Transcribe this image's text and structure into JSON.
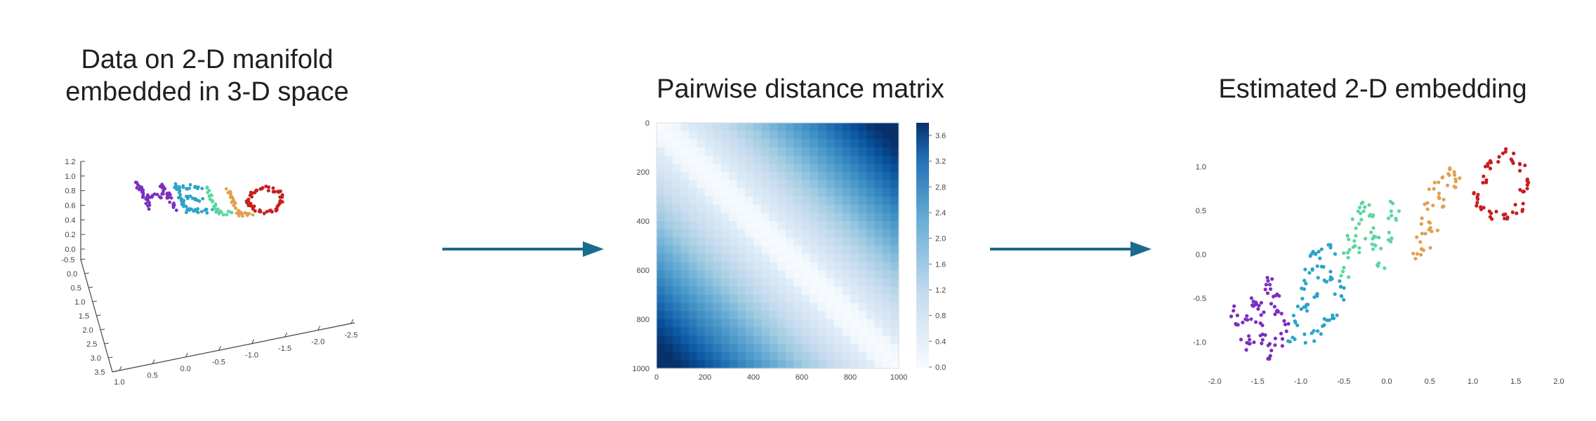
{
  "panels": {
    "left": {
      "title_line1": "Data on 2-D manifold",
      "title_line2": "embedded in 3-D space",
      "word": "HELLO",
      "z_ticks": [
        "1.2",
        "1.0",
        "0.8",
        "0.6",
        "0.4",
        "0.2",
        "0.0"
      ],
      "depth_ticks": [
        "-0.5",
        "0.0",
        "0.5",
        "1.0",
        "1.5",
        "2.0",
        "2.5",
        "3.0",
        "3.5"
      ],
      "x_ticks": [
        "1.0",
        "0.5",
        "0.0",
        "-0.5",
        "-1.0",
        "-1.5",
        "-2.0",
        "-2.5"
      ]
    },
    "middle": {
      "title": "Pairwise distance matrix",
      "y_ticks": [
        "0",
        "200",
        "400",
        "600",
        "800",
        "1000"
      ],
      "x_ticks": [
        "0",
        "200",
        "400",
        "600",
        "800",
        "1000"
      ],
      "colorbar_ticks": [
        "3.6",
        "3.2",
        "2.8",
        "2.4",
        "2.0",
        "1.6",
        "1.2",
        "0.8",
        "0.4",
        "0.0"
      ]
    },
    "right": {
      "title": "Estimated 2-D embedding",
      "y_ticks": [
        "1.0",
        "0.5",
        "0.0",
        "-0.5",
        "-1.0"
      ],
      "x_ticks": [
        "-2.0",
        "-1.5",
        "-1.0",
        "-0.5",
        "0.0",
        "0.5",
        "1.0",
        "1.5",
        "2.0"
      ]
    }
  },
  "colors": {
    "arrow": "#1a6b8c",
    "letter_h": "#7b2fbf",
    "letter_e": "#2ba3c9",
    "letter_l1": "#5cd6a0",
    "letter_l2": "#e0a050",
    "letter_o": "#c81e1e",
    "heatmap_dark": "#08306b",
    "heatmap_light": "#f7fbff"
  },
  "chart_data": [
    {
      "type": "scatter",
      "description_title": "Estimated 2-D embedding",
      "xlim": [
        -2.0,
        2.0
      ],
      "ylim": [
        -1.3,
        1.3
      ],
      "series": [
        {
          "color": "#7b2fbf",
          "points": [
            [
              -1.75,
              -0.65
            ],
            [
              -1.7,
              -0.8
            ],
            [
              -1.65,
              -0.95
            ],
            [
              -1.6,
              -1.05
            ],
            [
              -1.55,
              -0.55
            ],
            [
              -1.5,
              -0.75
            ],
            [
              -1.45,
              -0.95
            ],
            [
              -1.4,
              -1.05
            ],
            [
              -1.35,
              -1.15
            ],
            [
              -1.6,
              -0.7
            ],
            [
              -1.5,
              -0.55
            ],
            [
              -1.4,
              -0.4
            ],
            [
              -1.35,
              -0.3
            ],
            [
              -1.3,
              -0.5
            ],
            [
              -1.25,
              -0.7
            ],
            [
              -1.2,
              -0.85
            ],
            [
              -1.25,
              -1.0
            ],
            [
              -1.3,
              -0.6
            ],
            [
              -1.45,
              -0.6
            ]
          ]
        },
        {
          "color": "#2ba3c9",
          "points": [
            [
              -1.1,
              -0.95
            ],
            [
              -1.05,
              -0.75
            ],
            [
              -1.0,
              -0.55
            ],
            [
              -0.95,
              -0.35
            ],
            [
              -0.9,
              -0.2
            ],
            [
              -0.85,
              -0.05
            ],
            [
              -0.8,
              0.05
            ],
            [
              -0.95,
              -0.6
            ],
            [
              -0.85,
              -0.45
            ],
            [
              -0.75,
              -0.3
            ],
            [
              -0.65,
              -0.25
            ],
            [
              -0.9,
              -0.95
            ],
            [
              -0.8,
              -0.85
            ],
            [
              -0.7,
              -0.75
            ],
            [
              -0.6,
              -0.7
            ],
            [
              -0.75,
              -0.1
            ],
            [
              -0.65,
              0.05
            ],
            [
              -0.55,
              -0.5
            ],
            [
              -0.5,
              -0.35
            ]
          ]
        },
        {
          "color": "#5cd6a0",
          "points": [
            [
              -0.5,
              -0.2
            ],
            [
              -0.45,
              0.0
            ],
            [
              -0.4,
              0.2
            ],
            [
              -0.35,
              0.35
            ],
            [
              -0.3,
              0.5
            ],
            [
              -0.25,
              0.55
            ],
            [
              -0.2,
              0.4
            ],
            [
              -0.15,
              0.25
            ],
            [
              -0.1,
              0.05
            ],
            [
              -0.05,
              -0.1
            ],
            [
              0.0,
              0.2
            ],
            [
              0.05,
              0.4
            ],
            [
              0.1,
              0.55
            ],
            [
              -0.35,
              0.05
            ],
            [
              -0.2,
              0.15
            ]
          ]
        },
        {
          "color": "#e0a050",
          "points": [
            [
              0.35,
              0.0
            ],
            [
              0.4,
              0.2
            ],
            [
              0.45,
              0.4
            ],
            [
              0.5,
              0.55
            ],
            [
              0.55,
              0.7
            ],
            [
              0.6,
              0.85
            ],
            [
              0.7,
              0.95
            ],
            [
              0.75,
              0.8
            ],
            [
              0.8,
              0.9
            ],
            [
              0.65,
              0.6
            ],
            [
              0.55,
              0.3
            ],
            [
              0.45,
              0.1
            ]
          ]
        },
        {
          "color": "#c81e1e",
          "points": [
            [
              1.05,
              0.65
            ],
            [
              1.1,
              0.85
            ],
            [
              1.15,
              1.0
            ],
            [
              1.25,
              1.1
            ],
            [
              1.35,
              1.15
            ],
            [
              1.45,
              1.1
            ],
            [
              1.55,
              1.0
            ],
            [
              1.6,
              0.85
            ],
            [
              1.6,
              0.7
            ],
            [
              1.55,
              0.55
            ],
            [
              1.45,
              0.45
            ],
            [
              1.35,
              0.4
            ],
            [
              1.25,
              0.45
            ],
            [
              1.15,
              0.5
            ],
            [
              1.08,
              0.58
            ]
          ]
        }
      ]
    }
  ]
}
